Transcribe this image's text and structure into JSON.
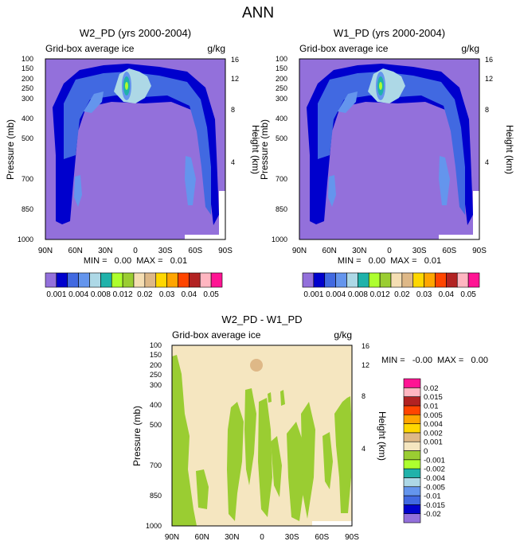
{
  "page": {
    "title": "ANN"
  },
  "chart_data": [
    {
      "type": "contour",
      "panel_title": "W2_PD (yrs 2000-2004)",
      "variable_label": "Grid-box average ice",
      "units": "g/kg",
      "xlabel": "",
      "ylabel": "Pressure (mb)",
      "y2label": "Height (km)",
      "x_ticks": [
        "90N",
        "60N",
        "30N",
        "0",
        "30S",
        "60S",
        "90S"
      ],
      "y_ticks": [
        "100",
        "150",
        "200",
        "250",
        "300",
        "400",
        "500",
        "700",
        "850",
        "1000"
      ],
      "y_values_mb": [
        100,
        150,
        200,
        250,
        300,
        400,
        500,
        700,
        850,
        1000
      ],
      "y2_ticks": [
        "16",
        "12",
        "8",
        "4"
      ],
      "min_max_text": "MIN =   0.00  MAX =   0.01",
      "min": 0.0,
      "max": 0.01
    },
    {
      "type": "contour",
      "panel_title": "W1_PD (yrs 2000-2004)",
      "variable_label": "Grid-box average ice",
      "units": "g/kg",
      "xlabel": "",
      "ylabel": "Pressure (mb)",
      "y2label": "Height (km)",
      "x_ticks": [
        "90N",
        "60N",
        "30N",
        "0",
        "30S",
        "60S",
        "90S"
      ],
      "y_ticks": [
        "100",
        "150",
        "200",
        "250",
        "300",
        "400",
        "500",
        "700",
        "850",
        "1000"
      ],
      "y_values_mb": [
        100,
        150,
        200,
        250,
        300,
        400,
        500,
        700,
        850,
        1000
      ],
      "y2_ticks": [
        "16",
        "12",
        "8",
        "4"
      ],
      "min_max_text": "MIN =   0.00  MAX =   0.01",
      "min": 0.0,
      "max": 0.01
    },
    {
      "type": "contour",
      "panel_title": "W2_PD - W1_PD",
      "variable_label": "Grid-box average ice",
      "units": "g/kg",
      "xlabel": "",
      "ylabel": "Pressure (mb)",
      "y2label": "Height (km)",
      "x_ticks": [
        "90N",
        "60N",
        "30N",
        "0",
        "30S",
        "60S",
        "90S"
      ],
      "y_ticks": [
        "100",
        "150",
        "200",
        "250",
        "300",
        "400",
        "500",
        "700",
        "850",
        "1000"
      ],
      "y_values_mb": [
        100,
        150,
        200,
        250,
        300,
        400,
        500,
        700,
        850,
        1000
      ],
      "y2_ticks": [
        "16",
        "12",
        "8",
        "4"
      ],
      "min_max_text": "MIN =   -0.00  MAX =   0.00",
      "min": -0.0,
      "max": 0.0
    }
  ],
  "colorbar_main": {
    "colors": [
      "#9370DB",
      "#0000CD",
      "#4169E1",
      "#6495ED",
      "#ADD8E6",
      "#20B2AA",
      "#ADFF2F",
      "#9ACD32",
      "#F5DEB3",
      "#DEB887",
      "#FFD700",
      "#FFA500",
      "#FF4500",
      "#B22222",
      "#FFB6C1",
      "#FF1493"
    ],
    "labels": [
      "0.001",
      "0.004",
      "0.008",
      "0.012",
      "0.02",
      "0.03",
      "0.04",
      "0.05"
    ]
  },
  "colorbar_diff": {
    "colors": [
      "#9370DB",
      "#0000CD",
      "#4169E1",
      "#6495ED",
      "#ADD8E6",
      "#20B2AA",
      "#ADFF2F",
      "#9ACD32",
      "#F5E6C0",
      "#DEB887",
      "#FFD700",
      "#FFA500",
      "#FF4500",
      "#B22222",
      "#FFB6C1",
      "#FF1493"
    ],
    "labels": [
      "-0.02",
      "-0.015",
      "-0.01",
      "-0.005",
      "-0.004",
      "-0.002",
      "-0.001",
      "0",
      "0.001",
      "0.002",
      "0.004",
      "0.005",
      "0.01",
      "0.015",
      "0.02"
    ]
  }
}
